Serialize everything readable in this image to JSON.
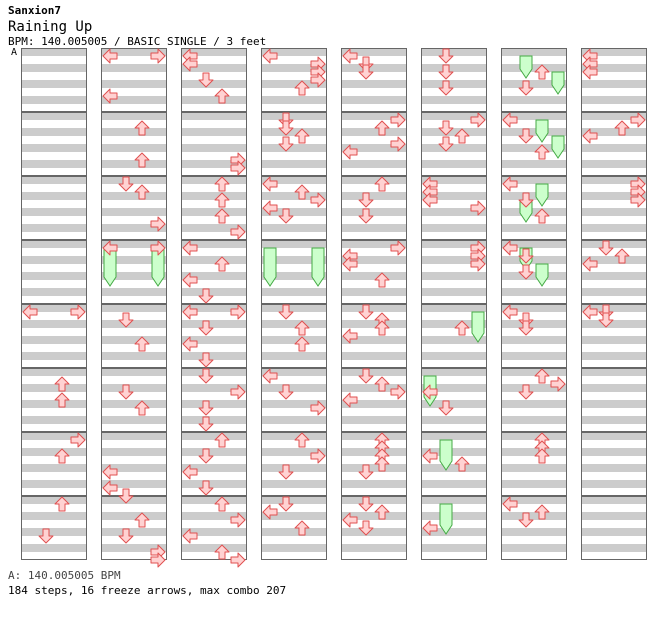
{
  "header": {
    "artist": "Sanxion7",
    "title": "Raining Up",
    "info": "BPM: 140.005005 / BASIC SINGLE / 3 feet",
    "marker": "A"
  },
  "footer": {
    "bpm_line": "A: 140.005005 BPM",
    "stats_line": "184 steps, 16 freeze arrows, max combo 207"
  },
  "colors": {
    "stripe": "#cccccc",
    "arrow_fill": "#ffd2d2",
    "arrow_stroke": "#e05050",
    "freeze_fill": "#ccffcc",
    "freeze_stroke": "#44aa44"
  },
  "chart_data": {
    "type": "step-chart",
    "columns": 8,
    "measures_per_column": 8,
    "lanes": [
      "left",
      "down",
      "up",
      "right"
    ],
    "steps": [
      [
        0,
        4,
        0,
        0
      ],
      [
        0,
        4,
        0,
        3
      ],
      [
        0,
        5,
        1,
        2
      ],
      [
        0,
        5,
        3,
        2
      ],
      [
        0,
        6,
        0,
        3
      ],
      [
        0,
        6,
        2,
        2
      ],
      [
        0,
        7,
        0,
        2
      ],
      [
        0,
        7,
        4,
        1
      ],
      [
        1,
        0,
        0,
        0
      ],
      [
        1,
        0,
        0,
        3
      ],
      [
        1,
        0,
        5,
        0
      ],
      [
        1,
        1,
        1,
        2
      ],
      [
        1,
        1,
        5,
        2
      ],
      [
        1,
        2,
        0,
        1
      ],
      [
        1,
        2,
        1,
        2
      ],
      [
        1,
        2,
        5,
        3
      ],
      [
        1,
        3,
        0,
        0
      ],
      [
        1,
        3,
        0,
        3
      ],
      [
        1,
        4,
        1,
        1
      ],
      [
        1,
        4,
        4,
        2
      ],
      [
        1,
        5,
        2,
        1
      ],
      [
        1,
        5,
        4,
        2
      ],
      [
        1,
        6,
        4,
        0
      ],
      [
        1,
        6,
        6,
        0
      ],
      [
        1,
        6,
        7,
        1
      ],
      [
        1,
        7,
        2,
        2
      ],
      [
        1,
        7,
        4,
        1
      ],
      [
        1,
        7,
        6,
        3
      ],
      [
        1,
        7,
        7,
        3
      ],
      [
        2,
        0,
        0,
        0
      ],
      [
        2,
        0,
        1,
        0
      ],
      [
        2,
        0,
        3,
        1
      ],
      [
        2,
        0,
        5,
        2
      ],
      [
        2,
        1,
        5,
        3
      ],
      [
        2,
        1,
        6,
        3
      ],
      [
        2,
        2,
        0,
        2
      ],
      [
        2,
        2,
        2,
        2
      ],
      [
        2,
        2,
        4,
        2
      ],
      [
        2,
        2,
        6,
        3
      ],
      [
        2,
        3,
        0,
        0
      ],
      [
        2,
        3,
        2,
        2
      ],
      [
        2,
        3,
        4,
        0
      ],
      [
        2,
        3,
        6,
        1
      ],
      [
        2,
        4,
        0,
        0
      ],
      [
        2,
        4,
        0,
        3
      ],
      [
        2,
        4,
        2,
        1
      ],
      [
        2,
        4,
        4,
        0
      ],
      [
        2,
        4,
        6,
        1
      ],
      [
        2,
        5,
        0,
        1
      ],
      [
        2,
        5,
        2,
        3
      ],
      [
        2,
        5,
        4,
        1
      ],
      [
        2,
        5,
        6,
        1
      ],
      [
        2,
        6,
        0,
        2
      ],
      [
        2,
        6,
        2,
        1
      ],
      [
        2,
        6,
        4,
        0
      ],
      [
        2,
        6,
        6,
        1
      ],
      [
        2,
        7,
        0,
        2
      ],
      [
        2,
        7,
        2,
        3
      ],
      [
        2,
        7,
        4,
        0
      ],
      [
        2,
        7,
        6,
        2
      ],
      [
        2,
        7,
        7,
        3
      ],
      [
        3,
        0,
        0,
        0
      ],
      [
        3,
        0,
        1,
        3
      ],
      [
        3,
        0,
        2,
        3
      ],
      [
        3,
        0,
        3,
        3
      ],
      [
        3,
        0,
        4,
        2
      ],
      [
        3,
        1,
        0,
        1
      ],
      [
        3,
        1,
        1,
        1
      ],
      [
        3,
        1,
        2,
        2
      ],
      [
        3,
        1,
        3,
        1
      ],
      [
        3,
        2,
        0,
        0
      ],
      [
        3,
        2,
        1,
        2
      ],
      [
        3,
        2,
        2,
        3
      ],
      [
        3,
        2,
        3,
        0
      ],
      [
        3,
        2,
        4,
        1
      ],
      [
        3,
        4,
        0,
        1
      ],
      [
        3,
        4,
        2,
        2
      ],
      [
        3,
        4,
        4,
        2
      ],
      [
        3,
        5,
        0,
        0
      ],
      [
        3,
        5,
        2,
        1
      ],
      [
        3,
        5,
        4,
        3
      ],
      [
        3,
        6,
        0,
        2
      ],
      [
        3,
        6,
        2,
        3
      ],
      [
        3,
        6,
        4,
        1
      ],
      [
        3,
        7,
        0,
        1
      ],
      [
        3,
        7,
        1,
        0
      ],
      [
        3,
        7,
        3,
        2
      ],
      [
        4,
        0,
        0,
        0
      ],
      [
        4,
        0,
        1,
        1
      ],
      [
        4,
        0,
        2,
        1
      ],
      [
        4,
        1,
        0,
        3
      ],
      [
        4,
        1,
        1,
        2
      ],
      [
        4,
        1,
        3,
        3
      ],
      [
        4,
        1,
        4,
        0
      ],
      [
        4,
        2,
        0,
        2
      ],
      [
        4,
        2,
        2,
        1
      ],
      [
        4,
        2,
        4,
        1
      ],
      [
        4,
        3,
        0,
        3
      ],
      [
        4,
        3,
        1,
        0
      ],
      [
        4,
        3,
        2,
        0
      ],
      [
        4,
        3,
        4,
        2
      ],
      [
        4,
        4,
        0,
        1
      ],
      [
        4,
        4,
        1,
        2
      ],
      [
        4,
        4,
        2,
        2
      ],
      [
        4,
        4,
        3,
        0
      ],
      [
        4,
        5,
        0,
        1
      ],
      [
        4,
        5,
        1,
        2
      ],
      [
        4,
        5,
        2,
        3
      ],
      [
        4,
        5,
        3,
        0
      ],
      [
        4,
        6,
        0,
        2
      ],
      [
        4,
        6,
        1,
        2
      ],
      [
        4,
        6,
        2,
        2
      ],
      [
        4,
        6,
        3,
        2
      ],
      [
        4,
        6,
        4,
        1
      ],
      [
        4,
        7,
        0,
        1
      ],
      [
        4,
        7,
        1,
        2
      ],
      [
        4,
        7,
        2,
        0
      ],
      [
        4,
        7,
        3,
        1
      ],
      [
        5,
        0,
        0,
        1
      ],
      [
        5,
        0,
        2,
        1
      ],
      [
        5,
        0,
        4,
        1
      ],
      [
        5,
        1,
        0,
        3
      ],
      [
        5,
        1,
        1,
        1
      ],
      [
        5,
        1,
        2,
        2
      ],
      [
        5,
        1,
        3,
        1
      ],
      [
        5,
        2,
        0,
        0
      ],
      [
        5,
        2,
        1,
        0
      ],
      [
        5,
        2,
        2,
        0
      ],
      [
        5,
        2,
        3,
        3
      ],
      [
        5,
        3,
        0,
        3
      ],
      [
        5,
        3,
        1,
        3
      ],
      [
        5,
        3,
        2,
        3
      ],
      [
        5,
        4,
        2,
        2
      ],
      [
        5,
        5,
        2,
        0
      ],
      [
        5,
        5,
        4,
        1
      ],
      [
        5,
        6,
        2,
        0
      ],
      [
        5,
        6,
        3,
        2
      ],
      [
        5,
        7,
        3,
        0
      ],
      [
        6,
        0,
        2,
        2
      ],
      [
        6,
        0,
        4,
        1
      ],
      [
        6,
        1,
        0,
        0
      ],
      [
        6,
        1,
        2,
        1
      ],
      [
        6,
        1,
        4,
        2
      ],
      [
        6,
        2,
        0,
        0
      ],
      [
        6,
        2,
        2,
        1
      ],
      [
        6,
        2,
        4,
        2
      ],
      [
        6,
        3,
        0,
        0
      ],
      [
        6,
        3,
        1,
        1
      ],
      [
        6,
        3,
        3,
        1
      ],
      [
        6,
        4,
        0,
        0
      ],
      [
        6,
        4,
        1,
        1
      ],
      [
        6,
        4,
        2,
        1
      ],
      [
        6,
        5,
        0,
        2
      ],
      [
        6,
        5,
        1,
        3
      ],
      [
        6,
        5,
        2,
        1
      ],
      [
        6,
        6,
        0,
        2
      ],
      [
        6,
        6,
        1,
        2
      ],
      [
        6,
        6,
        2,
        2
      ],
      [
        6,
        7,
        0,
        0
      ],
      [
        6,
        7,
        1,
        2
      ],
      [
        6,
        7,
        2,
        1
      ],
      [
        7,
        0,
        0,
        0
      ],
      [
        7,
        0,
        1,
        0
      ],
      [
        7,
        0,
        2,
        0
      ],
      [
        7,
        1,
        0,
        3
      ],
      [
        7,
        1,
        1,
        2
      ],
      [
        7,
        1,
        2,
        0
      ],
      [
        7,
        2,
        0,
        3
      ],
      [
        7,
        2,
        1,
        3
      ],
      [
        7,
        2,
        2,
        3
      ],
      [
        7,
        3,
        0,
        1
      ],
      [
        7,
        3,
        1,
        2
      ],
      [
        7,
        3,
        2,
        0
      ],
      [
        7,
        4,
        0,
        0
      ],
      [
        7,
        4,
        0,
        1
      ],
      [
        7,
        4,
        1,
        1
      ]
    ],
    "freezes": [
      [
        1,
        3,
        0,
        3,
        4,
        0
      ],
      [
        1,
        3,
        0,
        3,
        4,
        3
      ],
      [
        3,
        3,
        0,
        3,
        4,
        0
      ],
      [
        3,
        3,
        0,
        3,
        4,
        3
      ],
      [
        5,
        4,
        0,
        4,
        3,
        3
      ],
      [
        5,
        5,
        0,
        5,
        3,
        0
      ],
      [
        5,
        6,
        0,
        6,
        3,
        1
      ],
      [
        5,
        7,
        0,
        7,
        3,
        1
      ],
      [
        6,
        0,
        0,
        0,
        2,
        1
      ],
      [
        6,
        0,
        2,
        0,
        4,
        3
      ],
      [
        6,
        1,
        0,
        1,
        2,
        2
      ],
      [
        6,
        1,
        2,
        1,
        4,
        3
      ],
      [
        6,
        2,
        0,
        2,
        2,
        2
      ],
      [
        6,
        2,
        2,
        2,
        4,
        1
      ],
      [
        6,
        3,
        0,
        3,
        2,
        1
      ],
      [
        6,
        3,
        2,
        3,
        4,
        2
      ]
    ]
  }
}
